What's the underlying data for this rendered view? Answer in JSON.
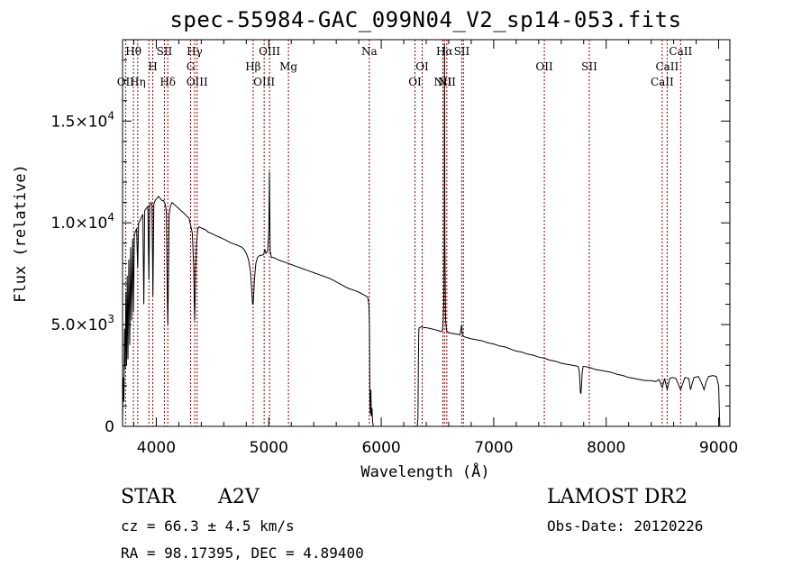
{
  "chart_data": {
    "type": "line",
    "title": "spec-55984-GAC_099N04_V2_sp14-053.fits",
    "xlabel": "Wavelength (Å)",
    "ylabel": "Flux (relative)",
    "xlim": [
      3700,
      9100
    ],
    "ylim": [
      0,
      19000
    ],
    "xticks": [
      4000,
      5000,
      6000,
      7000,
      8000,
      9000
    ],
    "xtick_labels": [
      "4000",
      "5000",
      "6000",
      "7000",
      "8000",
      "9000"
    ],
    "yticks": [
      0,
      5000,
      10000,
      15000
    ],
    "ytick_labels": [
      {
        "mantissa": "0",
        "exp": ""
      },
      {
        "mantissa": "5.0×10",
        "exp": "3"
      },
      {
        "mantissa": "1.0×10",
        "exp": "4"
      },
      {
        "mantissa": "1.5×10",
        "exp": "4"
      }
    ],
    "grid": false,
    "line_color": "#000000",
    "marker_color": "#8b0000",
    "line_markers": [
      {
        "x": 3797,
        "label": "Hθ",
        "row": 0
      },
      {
        "x": 3727,
        "label": "OII",
        "row": 2
      },
      {
        "x": 3835,
        "label": "Hη",
        "row": 2
      },
      {
        "x": 3934,
        "label": "",
        "row": -1
      },
      {
        "x": 3969,
        "label": "H",
        "row": 1
      },
      {
        "x": 4072,
        "label": "SII",
        "row": 0
      },
      {
        "x": 4102,
        "label": "Hδ",
        "row": 2
      },
      {
        "x": 4305,
        "label": "G",
        "row": 1
      },
      {
        "x": 4341,
        "label": "Hγ",
        "row": 0
      },
      {
        "x": 4363,
        "label": "OIII",
        "row": 2
      },
      {
        "x": 4861,
        "label": "Hβ",
        "row": 1
      },
      {
        "x": 4959,
        "label": "OIII",
        "row": 2
      },
      {
        "x": 5007,
        "label": "OIII",
        "row": 0
      },
      {
        "x": 5175,
        "label": "Mg",
        "row": 1
      },
      {
        "x": 5894,
        "label": "Na",
        "row": 0
      },
      {
        "x": 6300,
        "label": "OI",
        "row": 2
      },
      {
        "x": 6364,
        "label": "OI",
        "row": 1
      },
      {
        "x": 6548,
        "label": "NII",
        "row": 2
      },
      {
        "x": 6563,
        "label": "Hα",
        "row": 0
      },
      {
        "x": 6583,
        "label": "NII",
        "row": 2
      },
      {
        "x": 6716,
        "label": "SII",
        "row": 0
      },
      {
        "x": 6731,
        "label": "",
        "row": -1
      },
      {
        "x": 7450,
        "label": "OII",
        "row": 1
      },
      {
        "x": 7850,
        "label": "SII",
        "row": 1
      },
      {
        "x": 8498,
        "label": "CaII",
        "row": 2
      },
      {
        "x": 8542,
        "label": "CaII",
        "row": 1
      },
      {
        "x": 8662,
        "label": "CaII",
        "row": 0
      }
    ],
    "series": [
      {
        "values": [
          [
            3700,
            0
          ],
          [
            3705,
            2400
          ],
          [
            3712,
            1200
          ],
          [
            3718,
            4800
          ],
          [
            3724,
            2800
          ],
          [
            3730,
            6600
          ],
          [
            3736,
            3000
          ],
          [
            3742,
            7400
          ],
          [
            3748,
            3300
          ],
          [
            3756,
            8200
          ],
          [
            3764,
            4000
          ],
          [
            3772,
            8800
          ],
          [
            3780,
            5200
          ],
          [
            3790,
            9200
          ],
          [
            3797,
            5600
          ],
          [
            3805,
            9400
          ],
          [
            3815,
            9600
          ],
          [
            3825,
            9700
          ],
          [
            3835,
            7800
          ],
          [
            3843,
            10000
          ],
          [
            3855,
            10100
          ],
          [
            3868,
            10300
          ],
          [
            3880,
            10400
          ],
          [
            3889,
            6000
          ],
          [
            3897,
            10600
          ],
          [
            3910,
            10700
          ],
          [
            3925,
            10800
          ],
          [
            3934,
            7200
          ],
          [
            3942,
            10900
          ],
          [
            3955,
            11000
          ],
          [
            3962,
            10800
          ],
          [
            3970,
            6400
          ],
          [
            3978,
            10900
          ],
          [
            3990,
            11100
          ],
          [
            4005,
            11200
          ],
          [
            4020,
            11300
          ],
          [
            4035,
            11200
          ],
          [
            4050,
            11100
          ],
          [
            4065,
            11100
          ],
          [
            4080,
            10900
          ],
          [
            4090,
            10500
          ],
          [
            4097,
            6600
          ],
          [
            4102,
            5000
          ],
          [
            4107,
            6800
          ],
          [
            4114,
            10400
          ],
          [
            4125,
            10800
          ],
          [
            4140,
            11000
          ],
          [
            4160,
            10900
          ],
          [
            4180,
            10800
          ],
          [
            4200,
            10700
          ],
          [
            4220,
            10600
          ],
          [
            4240,
            10500
          ],
          [
            4260,
            10400
          ],
          [
            4275,
            10300
          ],
          [
            4290,
            10250
          ],
          [
            4305,
            9900
          ],
          [
            4320,
            9500
          ],
          [
            4333,
            7800
          ],
          [
            4338,
            6000
          ],
          [
            4341,
            5200
          ],
          [
            4345,
            6100
          ],
          [
            4350,
            7800
          ],
          [
            4358,
            9000
          ],
          [
            4368,
            9700
          ],
          [
            4380,
            9800
          ],
          [
            4400,
            9750
          ],
          [
            4420,
            9700
          ],
          [
            4440,
            9650
          ],
          [
            4460,
            9550
          ],
          [
            4480,
            9500
          ],
          [
            4500,
            9450
          ],
          [
            4520,
            9400
          ],
          [
            4540,
            9350
          ],
          [
            4560,
            9300
          ],
          [
            4580,
            9250
          ],
          [
            4600,
            9200
          ],
          [
            4620,
            9150
          ],
          [
            4640,
            9080
          ],
          [
            4660,
            9020
          ],
          [
            4680,
            8980
          ],
          [
            4700,
            8940
          ],
          [
            4720,
            8900
          ],
          [
            4740,
            8850
          ],
          [
            4760,
            8800
          ],
          [
            4780,
            8700
          ],
          [
            4800,
            8500
          ],
          [
            4820,
            8200
          ],
          [
            4838,
            7600
          ],
          [
            4850,
            6600
          ],
          [
            4856,
            6000
          ],
          [
            4861,
            6000
          ],
          [
            4866,
            6400
          ],
          [
            4872,
            7200
          ],
          [
            4885,
            8000
          ],
          [
            4900,
            8300
          ],
          [
            4920,
            8400
          ],
          [
            4940,
            8400
          ],
          [
            4955,
            8450
          ],
          [
            4965,
            8700
          ],
          [
            4975,
            8500
          ],
          [
            4990,
            8600
          ],
          [
            5000,
            9600
          ],
          [
            5004,
            11500
          ],
          [
            5006,
            12500
          ],
          [
            5008,
            11000
          ],
          [
            5012,
            8600
          ],
          [
            5025,
            8300
          ],
          [
            5040,
            8300
          ],
          [
            5060,
            8250
          ],
          [
            5080,
            8200
          ],
          [
            5100,
            8150
          ],
          [
            5150,
            8050
          ],
          [
            5200,
            7950
          ],
          [
            5250,
            7850
          ],
          [
            5300,
            7750
          ],
          [
            5350,
            7650
          ],
          [
            5400,
            7550
          ],
          [
            5450,
            7450
          ],
          [
            5500,
            7350
          ],
          [
            5550,
            7250
          ],
          [
            5600,
            7100
          ],
          [
            5650,
            6950
          ],
          [
            5700,
            6800
          ],
          [
            5750,
            6700
          ],
          [
            5800,
            6600
          ],
          [
            5850,
            6450
          ],
          [
            5880,
            6350
          ],
          [
            5890,
            6000
          ],
          [
            5895,
            5000
          ],
          [
            5899,
            1400
          ],
          [
            5903,
            600
          ],
          [
            5908,
            1800
          ],
          [
            5912,
            500
          ],
          [
            5918,
            900
          ],
          [
            5924,
            200
          ],
          [
            5930,
            0
          ],
          [
            6320,
            0
          ],
          [
            6326,
            400
          ],
          [
            6330,
            3200
          ],
          [
            6334,
            4800
          ],
          [
            6340,
            4850
          ],
          [
            6360,
            4900
          ],
          [
            6380,
            4850
          ],
          [
            6400,
            4850
          ],
          [
            6440,
            4800
          ],
          [
            6480,
            4750
          ],
          [
            6510,
            4700
          ],
          [
            6530,
            4650
          ],
          [
            6545,
            4700
          ],
          [
            6550,
            5200
          ],
          [
            6556,
            6000
          ],
          [
            6560,
            9000
          ],
          [
            6563,
            18800
          ],
          [
            6566,
            9000
          ],
          [
            6572,
            5200
          ],
          [
            6580,
            4700
          ],
          [
            6600,
            4600
          ],
          [
            6650,
            4550
          ],
          [
            6700,
            4500
          ],
          [
            6710,
            4800
          ],
          [
            6716,
            5000
          ],
          [
            6722,
            4500
          ],
          [
            6740,
            4400
          ],
          [
            6800,
            4300
          ],
          [
            6850,
            4250
          ],
          [
            6900,
            4200
          ],
          [
            6950,
            4100
          ],
          [
            7000,
            4050
          ],
          [
            7050,
            3950
          ],
          [
            7100,
            3900
          ],
          [
            7150,
            3800
          ],
          [
            7200,
            3700
          ],
          [
            7250,
            3650
          ],
          [
            7300,
            3550
          ],
          [
            7350,
            3500
          ],
          [
            7400,
            3400
          ],
          [
            7450,
            3350
          ],
          [
            7500,
            3250
          ],
          [
            7550,
            3200
          ],
          [
            7600,
            3100
          ],
          [
            7650,
            3050
          ],
          [
            7700,
            3000
          ],
          [
            7750,
            2950
          ],
          [
            7760,
            2750
          ],
          [
            7765,
            2300
          ],
          [
            7770,
            1700
          ],
          [
            7775,
            1600
          ],
          [
            7780,
            1900
          ],
          [
            7786,
            2600
          ],
          [
            7795,
            2950
          ],
          [
            7850,
            2900
          ],
          [
            7900,
            2800
          ],
          [
            7950,
            2750
          ],
          [
            8000,
            2700
          ],
          [
            8050,
            2650
          ],
          [
            8100,
            2550
          ],
          [
            8150,
            2500
          ],
          [
            8200,
            2400
          ],
          [
            8250,
            2350
          ],
          [
            8300,
            2300
          ],
          [
            8350,
            2250
          ],
          [
            8400,
            2250
          ],
          [
            8440,
            2200
          ],
          [
            8470,
            2300
          ],
          [
            8485,
            2100
          ],
          [
            8498,
            1900
          ],
          [
            8510,
            2150
          ],
          [
            8520,
            2350
          ],
          [
            8542,
            1800
          ],
          [
            8565,
            2350
          ],
          [
            8590,
            2400
          ],
          [
            8620,
            2350
          ],
          [
            8662,
            1800
          ],
          [
            8700,
            2400
          ],
          [
            8735,
            2350
          ],
          [
            8750,
            1800
          ],
          [
            8780,
            2400
          ],
          [
            8820,
            2450
          ],
          [
            8850,
            2100
          ],
          [
            8870,
            1800
          ],
          [
            8890,
            2200
          ],
          [
            8910,
            2450
          ],
          [
            8950,
            2500
          ],
          [
            8980,
            2450
          ],
          [
            9000,
            2000
          ],
          [
            9010,
            0
          ]
        ]
      }
    ]
  },
  "annotations": {
    "object_class": "STAR",
    "subclass": "A2V",
    "survey": "LAMOST DR2",
    "redshift": "cz = 66.3 ± 4.5 km/s",
    "obs_date": "Obs-Date: 20120226",
    "coords": "RA =  98.17395, DEC =   4.89400"
  }
}
